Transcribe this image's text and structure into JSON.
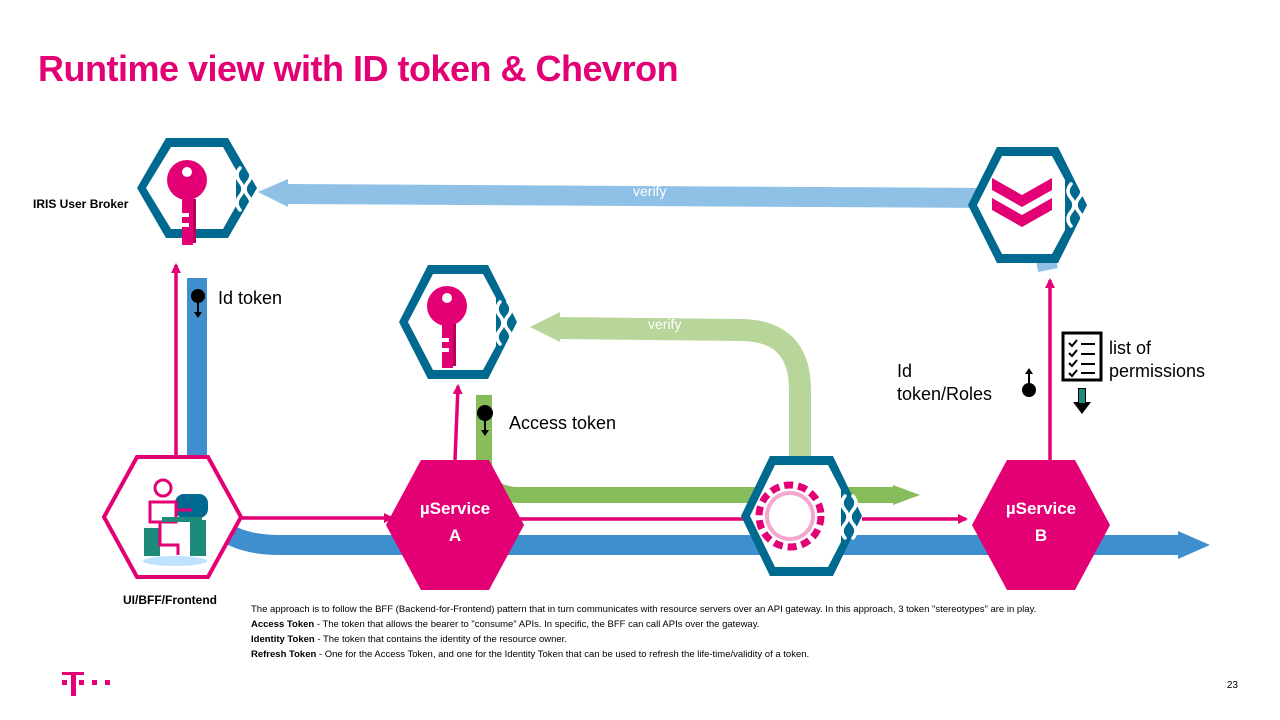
{
  "slide": {
    "title": "Runtime view with ID token & Chevron",
    "page_number": "23"
  },
  "nodes": {
    "iris_broker": "IRIS User Broker",
    "frontend": "UI/BFF/Frontend",
    "service_a_line1": "µService",
    "service_a_line2": "A",
    "service_b_line1": "µService",
    "service_b_line2": "B"
  },
  "edges": {
    "verify_top": "verify",
    "verify_mid": "verify",
    "id_token": "Id token",
    "access_token": "Access token",
    "id_token_roles_1": "Id",
    "id_token_roles_2": "token/Roles",
    "permissions_1": "list of",
    "permissions_2": "permissions"
  },
  "description": {
    "intro": "The approach is to follow the BFF (Backend-for-Frontend) pattern that in turn communicates with resource servers over an API gateway. In this approach, 3 token \"stereotypes\" are in play.",
    "access_term": "Access Token",
    "access_text": " - The token that allows the bearer to \"consume\" APIs. In specific, the BFF can call APIs over the gateway.",
    "identity_term": "Identity Token",
    "identity_text": " - The token that contains the identity of the resource owner.",
    "refresh_term": "Refresh Token",
    "refresh_text": " - One for the Access Token, and one for the Identity Token that can be used to refresh the life-time/validity of a token."
  },
  "colors": {
    "magenta": "#e20074",
    "teal": "#00698f",
    "blue": "#3f8fcf",
    "light_blue": "#8fc0e6",
    "green": "#86bc5a",
    "light_green": "#b9d69a"
  },
  "icons": {
    "key": "key-icon",
    "chevron": "chevron-icon",
    "gateway": "gateway-gear-icon",
    "checklist": "checklist-icon",
    "user": "user-at-desk-icon"
  }
}
